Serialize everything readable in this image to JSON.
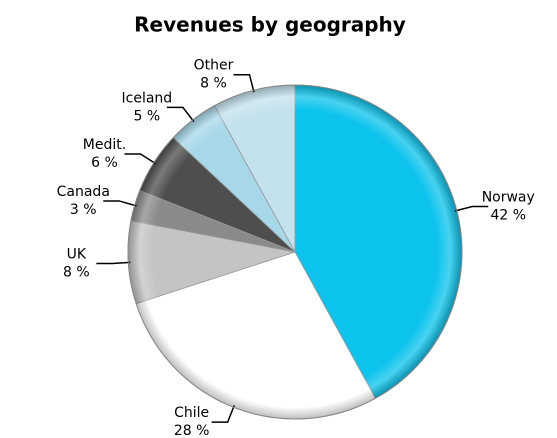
{
  "chart_data": {
    "type": "pie",
    "title": "Revenues by geography",
    "categories": [
      "Norway",
      "Chile",
      "UK",
      "Canada",
      "Medit.",
      "Iceland",
      "Other"
    ],
    "values": [
      42,
      28,
      8,
      3,
      6,
      5,
      8
    ],
    "value_labels": [
      "42 %",
      "28 %",
      "8 %",
      "3 %",
      "6 %",
      "5 %",
      "8 %"
    ],
    "colors": [
      "#0bc3ec",
      "#ffffff",
      "#c4c4c4",
      "#8a8a8a",
      "#4e4e4e",
      "#a6d8ea",
      "#c4e2ee"
    ]
  }
}
